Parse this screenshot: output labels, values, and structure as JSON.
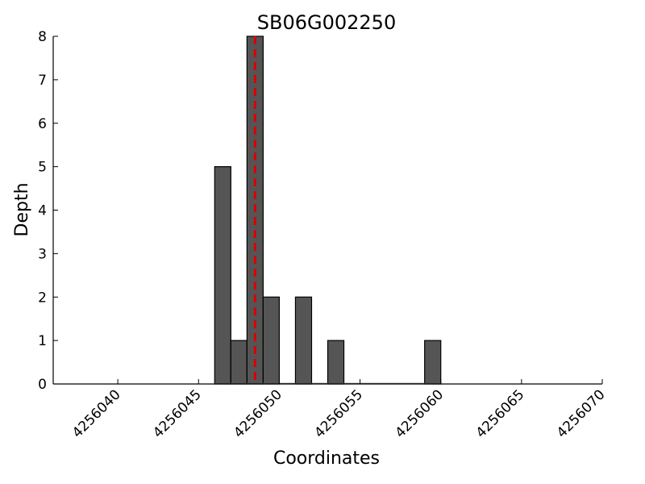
{
  "chart_data": {
    "type": "bar",
    "title": "SB06G002250",
    "xlabel": "Coordinates",
    "ylabel": "Depth",
    "xlim": [
      4256036,
      4256070
    ],
    "ylim": [
      0,
      8
    ],
    "x_ticks": [
      4256040,
      4256045,
      4256050,
      4256055,
      4256060,
      4256065,
      4256070
    ],
    "y_ticks": [
      0,
      1,
      2,
      3,
      4,
      5,
      6,
      7,
      8
    ],
    "bin_width": 1,
    "bars": [
      {
        "x": 4256046,
        "value": 5
      },
      {
        "x": 4256047,
        "value": 1
      },
      {
        "x": 4256048,
        "value": 8
      },
      {
        "x": 4256049,
        "value": 2
      },
      {
        "x": 4256050,
        "value": 0
      },
      {
        "x": 4256051,
        "value": 2
      },
      {
        "x": 4256052,
        "value": 0
      },
      {
        "x": 4256053,
        "value": 1
      },
      {
        "x": 4256054,
        "value": 0
      },
      {
        "x": 4256055,
        "value": 0
      },
      {
        "x": 4256056,
        "value": 0
      },
      {
        "x": 4256057,
        "value": 0
      },
      {
        "x": 4256058,
        "value": 0
      },
      {
        "x": 4256059,
        "value": 1
      }
    ],
    "marker_x": 4256048.5,
    "grid": false,
    "colors": {
      "bar_fill": "#555555",
      "marker": "#dd0000",
      "baseline": "#555555"
    }
  }
}
